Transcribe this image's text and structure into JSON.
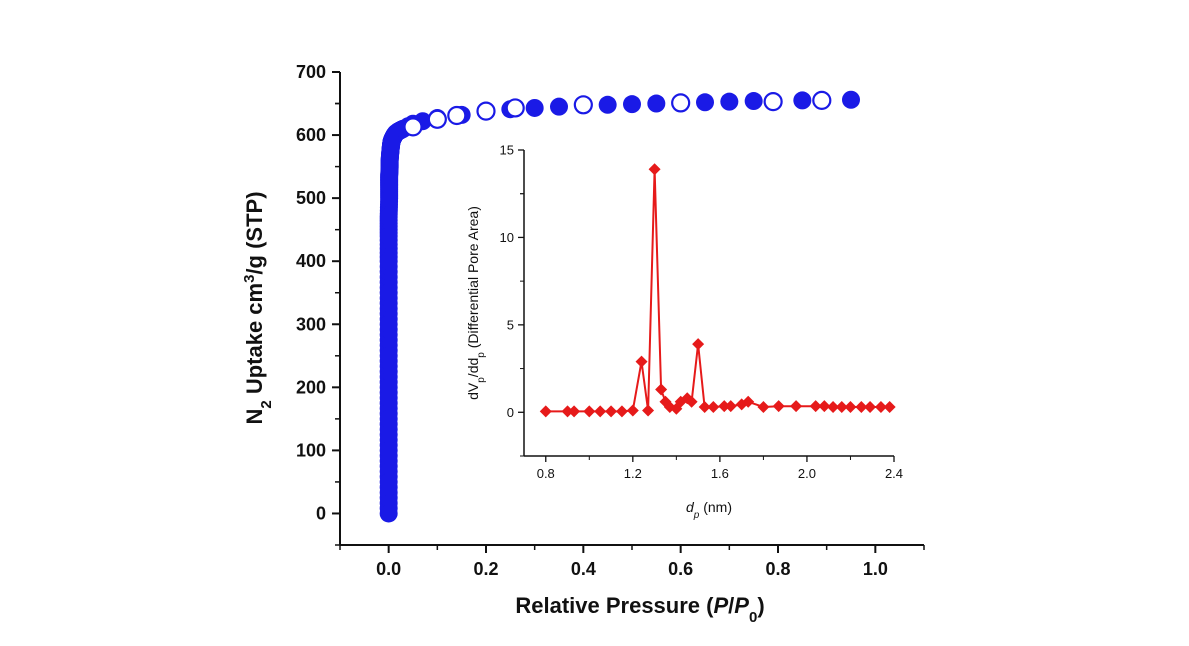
{
  "chart_data": [
    {
      "type": "scatter",
      "title": "",
      "xlabel": {
        "prefix": "Relative Pressure (",
        "p": "P",
        "slash": "/",
        "p0": "P",
        "sub": "0",
        "suffix": ")"
      },
      "ylabel": {
        "n": "N",
        "sub": "2",
        "mid": " Uptake cm",
        "sup": "3",
        "end": "/g (STP)"
      },
      "xlim": [
        -0.1,
        1.1
      ],
      "ylim": [
        -50,
        700
      ],
      "x_ticks": [
        "0.0",
        "0.2",
        "0.4",
        "0.6",
        "0.8",
        "1.0"
      ],
      "y_ticks": [
        "0",
        "100",
        "200",
        "300",
        "400",
        "500",
        "600",
        "700"
      ],
      "colors": {
        "series": "#1a1ae6"
      },
      "series": [
        {
          "marker": "filled-circle",
          "x": [
            0.0,
            0.0,
            0.0,
            0.0,
            0.0,
            0.0,
            0.0,
            0.0,
            0.0,
            0.0,
            0.0,
            0.001,
            0.001,
            0.001,
            0.002,
            0.002,
            0.003,
            0.004,
            0.005,
            0.006,
            0.008,
            0.01,
            0.012,
            0.015,
            0.02,
            0.025,
            0.03,
            0.04,
            0.05,
            0.07,
            0.1,
            0.15,
            0.25,
            0.3,
            0.35,
            0.45,
            0.5,
            0.55,
            0.65,
            0.7,
            0.75,
            0.85,
            0.95
          ],
          "y": [
            0,
            50,
            100,
            150,
            200,
            250,
            300,
            350,
            400,
            440,
            470,
            500,
            520,
            535,
            548,
            560,
            570,
            578,
            585,
            590,
            594,
            597,
            600,
            603,
            606,
            608,
            610,
            614,
            618,
            622,
            627,
            632,
            641,
            643,
            645,
            648,
            649,
            650,
            652,
            653,
            654,
            655,
            656
          ]
        },
        {
          "marker": "open-circle",
          "x": [
            0.05,
            0.1,
            0.14,
            0.2,
            0.26,
            0.4,
            0.6,
            0.79,
            0.89
          ],
          "y": [
            613,
            625,
            631,
            638,
            643,
            648,
            651,
            653,
            655
          ]
        }
      ]
    },
    {
      "type": "line",
      "title": "",
      "xlabel": {
        "d": "d",
        "sub": "p",
        "suffix": " (nm)"
      },
      "ylabel": {
        "dv": "dV",
        "sub1": "p",
        "mid": "/dd",
        "sub2": "p",
        "suffix": " (Differential Pore Area)"
      },
      "xlim": [
        0.7,
        2.4
      ],
      "ylim": [
        -2.5,
        15
      ],
      "x_ticks": [
        "0.8",
        "1.2",
        "1.6",
        "2.0",
        "2.4"
      ],
      "y_ticks": [
        "0",
        "5",
        "10",
        "15"
      ],
      "colors": {
        "series": "#e61a1a"
      },
      "series": [
        {
          "marker": "filled-diamond",
          "x": [
            0.8,
            0.9,
            0.93,
            1.0,
            1.05,
            1.1,
            1.15,
            1.2,
            1.24,
            1.27,
            1.3,
            1.33,
            1.35,
            1.37,
            1.4,
            1.42,
            1.45,
            1.47,
            1.5,
            1.53,
            1.57,
            1.62,
            1.65,
            1.7,
            1.73,
            1.8,
            1.87,
            1.95,
            2.04,
            2.08,
            2.12,
            2.16,
            2.2,
            2.25,
            2.29,
            2.34,
            2.38
          ],
          "y": [
            0.05,
            0.05,
            0.05,
            0.05,
            0.05,
            0.05,
            0.05,
            0.1,
            2.9,
            0.1,
            13.9,
            1.3,
            0.6,
            0.3,
            0.2,
            0.6,
            0.8,
            0.6,
            3.9,
            0.3,
            0.3,
            0.35,
            0.35,
            0.45,
            0.6,
            0.3,
            0.35,
            0.35,
            0.35,
            0.35,
            0.3,
            0.3,
            0.3,
            0.3,
            0.3,
            0.3,
            0.3
          ]
        }
      ]
    }
  ]
}
